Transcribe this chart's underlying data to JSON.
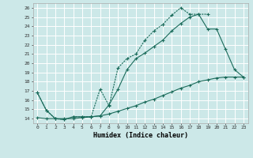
{
  "xlabel": "Humidex (Indice chaleur)",
  "background_color": "#cce8e8",
  "grid_color": "#b8d8d8",
  "line_color": "#1a6b5a",
  "xlim": [
    -0.5,
    23.5
  ],
  "ylim": [
    13.5,
    26.5
  ],
  "xticks": [
    0,
    1,
    2,
    3,
    4,
    5,
    6,
    7,
    8,
    9,
    10,
    11,
    12,
    13,
    14,
    15,
    16,
    17,
    18,
    19,
    20,
    21,
    22,
    23
  ],
  "yticks": [
    14,
    15,
    16,
    17,
    18,
    19,
    20,
    21,
    22,
    23,
    24,
    25,
    26
  ],
  "line1_x": [
    0,
    1,
    2,
    3,
    4,
    5,
    6,
    7,
    8,
    9,
    10,
    11,
    12,
    13,
    14,
    15,
    16,
    17,
    18,
    19
  ],
  "line1_y": [
    16.8,
    14.9,
    14.0,
    13.9,
    14.2,
    14.2,
    14.2,
    17.2,
    15.4,
    19.5,
    20.5,
    21.0,
    22.5,
    23.5,
    24.2,
    25.2,
    26.0,
    25.3,
    25.3,
    25.3
  ],
  "line2_x": [
    0,
    1,
    2,
    3,
    4,
    5,
    6,
    7,
    8,
    9,
    10,
    11,
    12,
    13,
    14,
    15,
    16,
    17,
    18,
    19,
    20,
    21,
    22,
    23
  ],
  "line2_y": [
    16.8,
    14.9,
    14.0,
    13.9,
    14.2,
    14.2,
    14.2,
    14.3,
    15.5,
    17.2,
    19.3,
    20.5,
    21.1,
    21.8,
    22.5,
    23.5,
    24.3,
    25.0,
    25.3,
    23.7,
    23.7,
    21.5,
    19.3,
    18.5
  ],
  "line3_x": [
    0,
    1,
    2,
    3,
    4,
    5,
    6,
    7,
    8,
    9,
    10,
    11,
    12,
    13,
    14,
    15,
    16,
    17,
    18,
    19,
    20,
    21,
    22,
    23
  ],
  "line3_y": [
    14.1,
    14.0,
    14.0,
    14.0,
    14.0,
    14.1,
    14.2,
    14.3,
    14.5,
    14.8,
    15.1,
    15.4,
    15.8,
    16.1,
    16.5,
    16.9,
    17.3,
    17.6,
    18.0,
    18.2,
    18.4,
    18.5,
    18.5,
    18.5
  ]
}
